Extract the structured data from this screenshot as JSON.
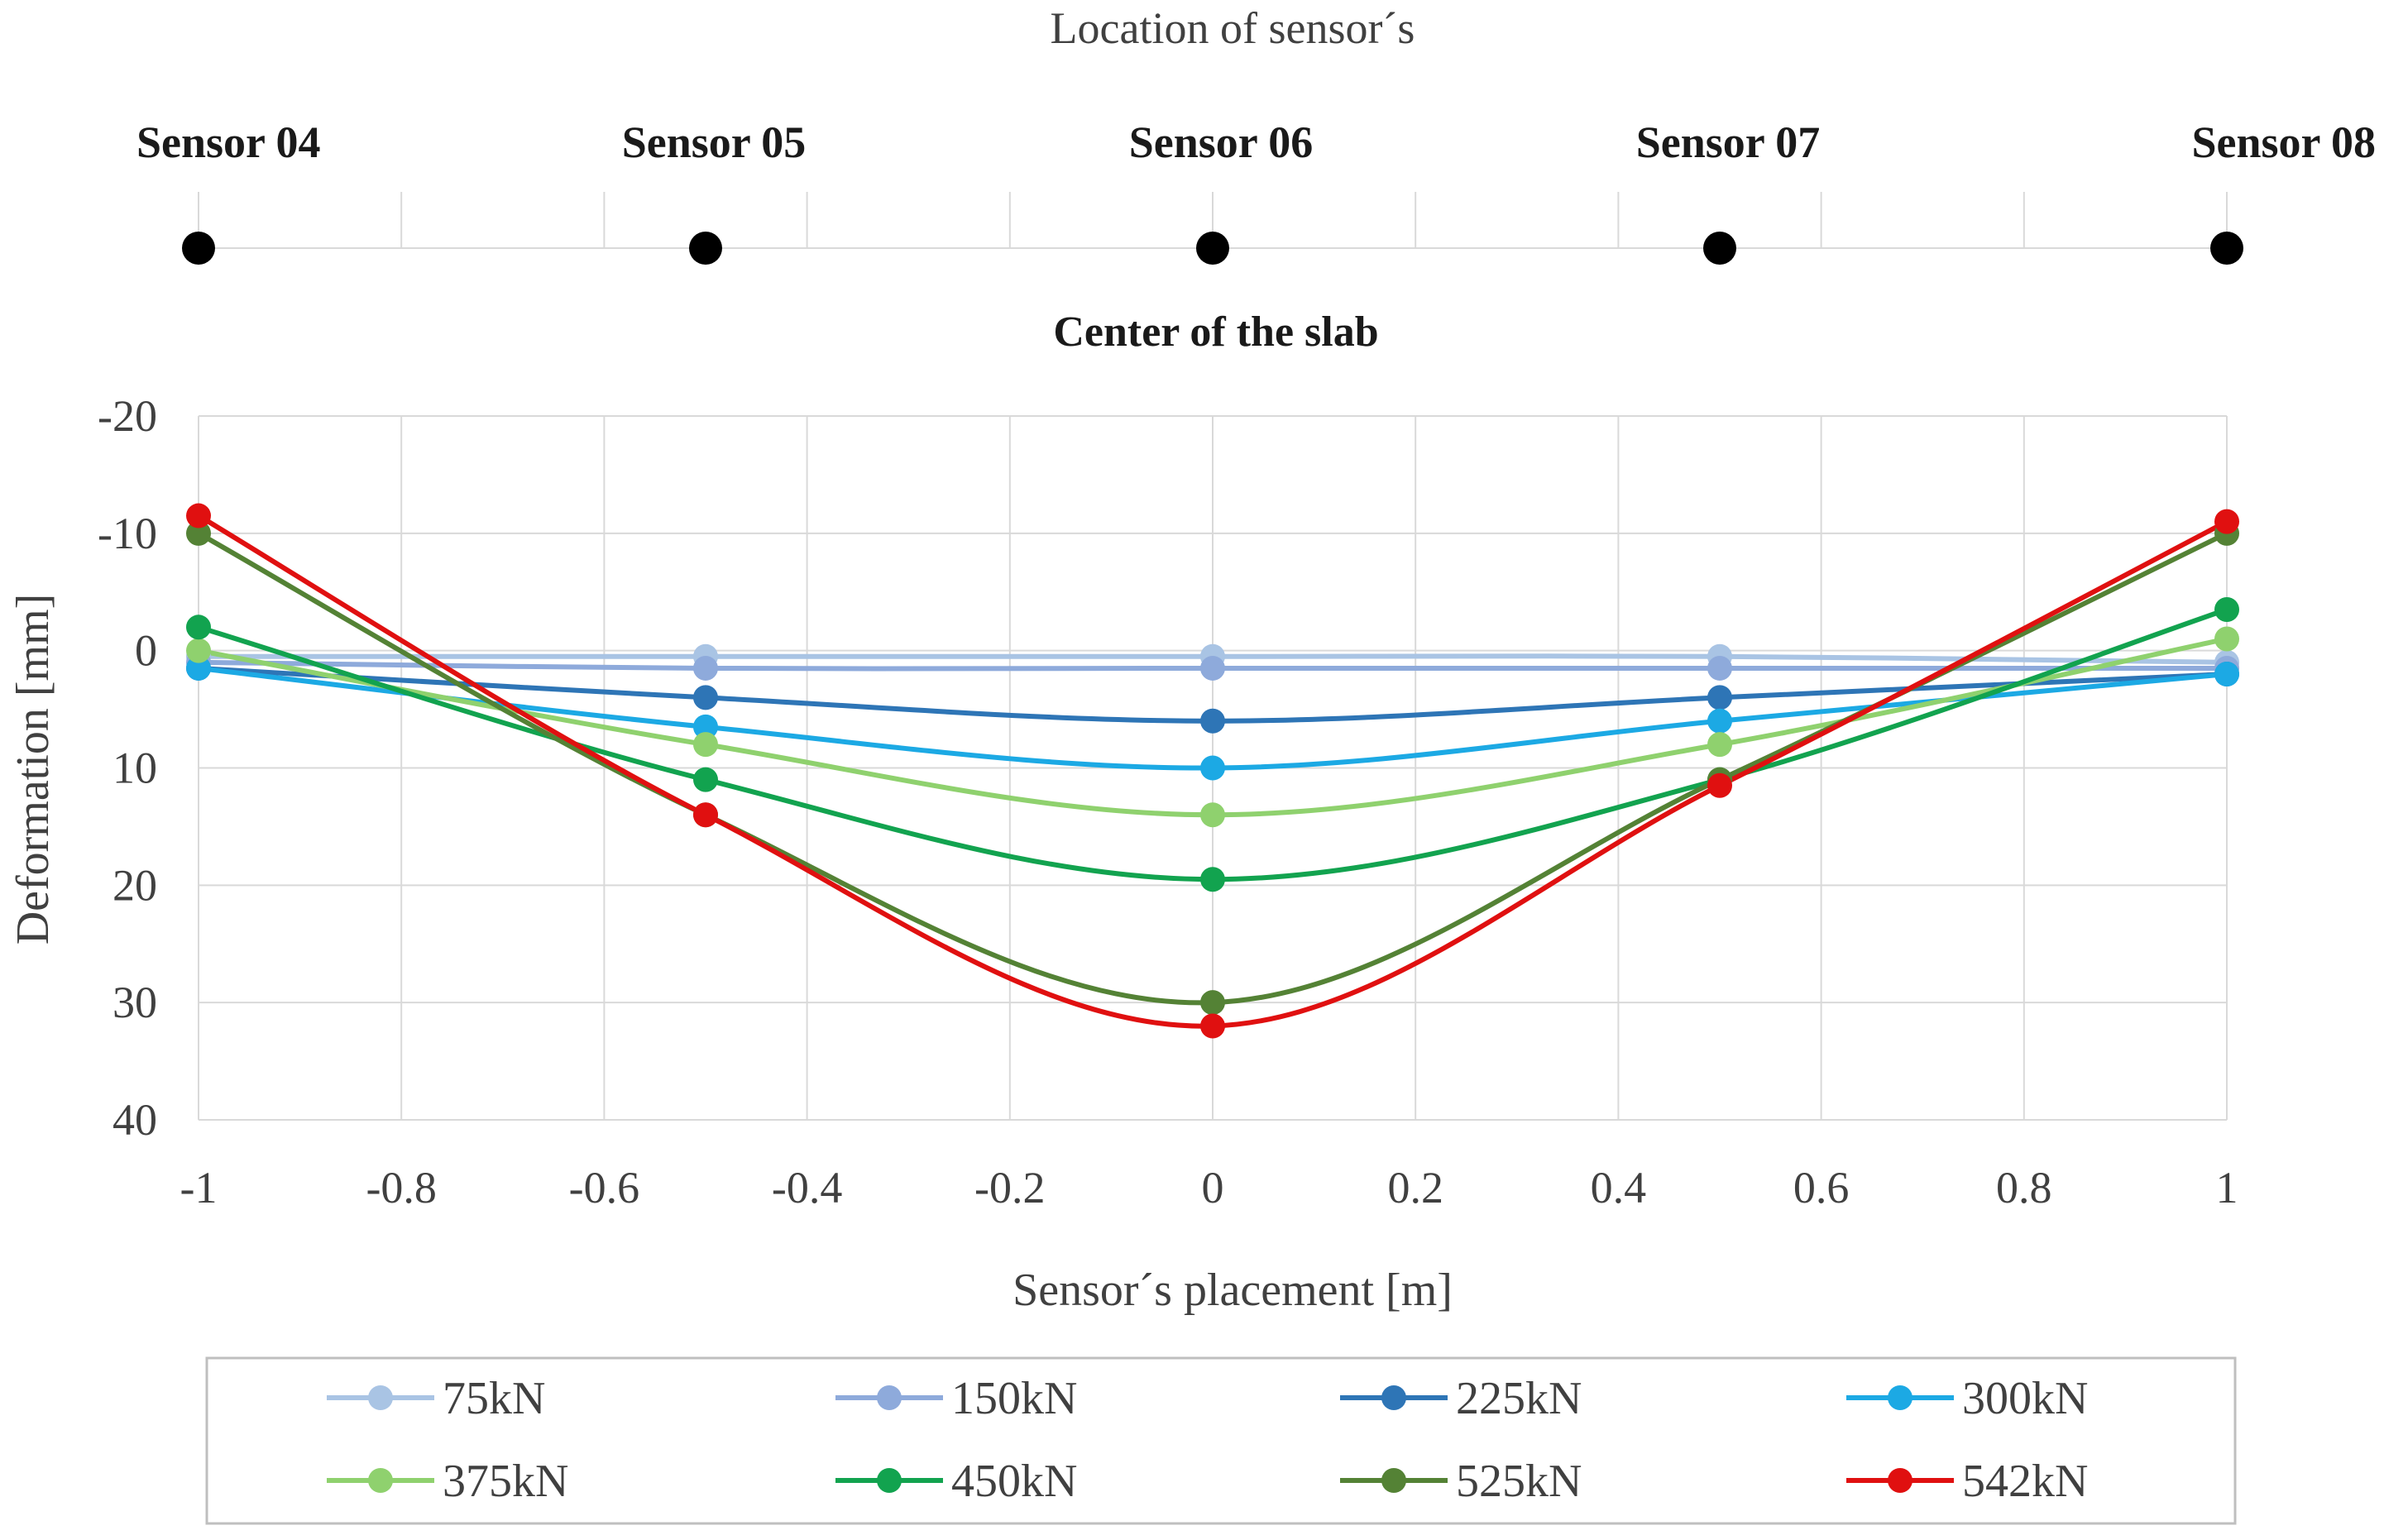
{
  "sensor_strip": {
    "title": "Location of sensor´s",
    "subtitle": "Center of the slab",
    "sensors": [
      {
        "label": "Sensor 04",
        "position": -1.0
      },
      {
        "label": "Sensor 05",
        "position": -0.5
      },
      {
        "label": "Sensor 06",
        "position": 0.0
      },
      {
        "label": "Sensor 07",
        "position": 0.5
      },
      {
        "label": "Sensor 08",
        "position": 1.0
      }
    ]
  },
  "chart_data": {
    "type": "line",
    "title": "Center of the slab",
    "xlabel": "Sensor´s placement [m]",
    "ylabel": "Deformation [mm]",
    "xlim": [
      -1,
      1
    ],
    "ylim": [
      -20,
      40
    ],
    "y_inverted": true,
    "grid": true,
    "smooth": true,
    "legend_position": "bottom",
    "x_ticks": [
      -1,
      -0.8,
      -0.6,
      -0.4,
      -0.2,
      0,
      0.2,
      0.4,
      0.6,
      0.8,
      1
    ],
    "x_tick_labels": [
      "-1",
      "-0.8",
      "-0.6",
      "-0.4",
      "-0.2",
      "0",
      "0.2",
      "0.4",
      "0.6",
      "0.8",
      "1"
    ],
    "y_ticks": [
      -20,
      -10,
      0,
      10,
      20,
      30,
      40
    ],
    "y_tick_labels": [
      "-20",
      "-10",
      "0",
      "10",
      "20",
      "30",
      "40"
    ],
    "x": [
      -1,
      -0.5,
      0,
      0.5,
      1
    ],
    "series": [
      {
        "name": "75kN",
        "color": "#a9c4e4",
        "values": [
          0.5,
          0.5,
          0.5,
          0.5,
          1.0
        ]
      },
      {
        "name": "150kN",
        "color": "#8eaadb",
        "values": [
          1.0,
          1.5,
          1.5,
          1.5,
          1.5
        ]
      },
      {
        "name": "225kN",
        "color": "#2e75b6",
        "values": [
          1.5,
          4.0,
          6.0,
          4.0,
          2.0
        ]
      },
      {
        "name": "300kN",
        "color": "#1ca9e4",
        "values": [
          1.5,
          6.5,
          10.0,
          6.0,
          2.0
        ]
      },
      {
        "name": "375kN",
        "color": "#8fd16e",
        "values": [
          0.0,
          8.0,
          14.0,
          8.0,
          -1.0
        ]
      },
      {
        "name": "450kN",
        "color": "#12a34f",
        "values": [
          -2.0,
          11.0,
          19.5,
          11.0,
          -3.5
        ]
      },
      {
        "name": "525kN",
        "color": "#548235",
        "values": [
          -10.0,
          14.0,
          30.0,
          11.0,
          -10.0
        ]
      },
      {
        "name": "542kN",
        "color": "#e01010",
        "values": [
          -11.5,
          14.0,
          32.0,
          11.5,
          -11.0
        ]
      }
    ]
  }
}
